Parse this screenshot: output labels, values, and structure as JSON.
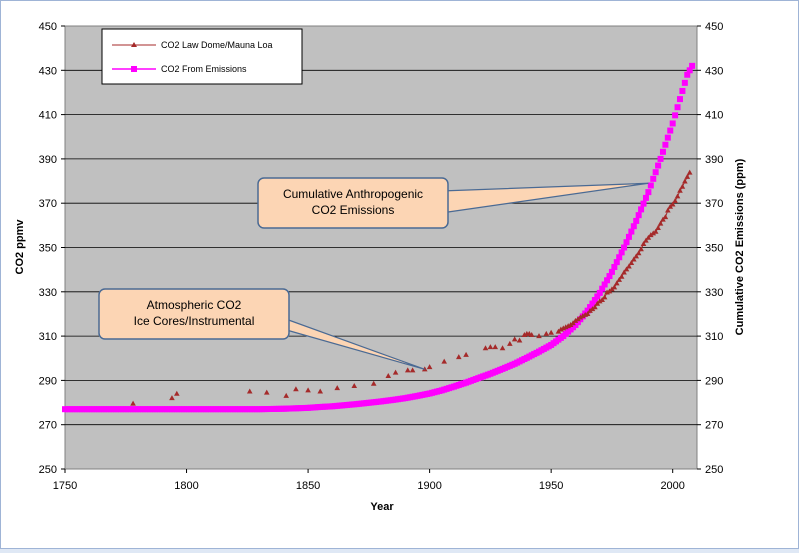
{
  "chart_data": {
    "type": "scatter",
    "xlabel": "Year",
    "ylabel_left": "CO2 ppmv",
    "ylabel_right": "Cumulative CO2 Emissions (ppm)",
    "xlim": [
      1750,
      2010
    ],
    "ylim": [
      250,
      450
    ],
    "x_ticks": [
      1750,
      1800,
      1850,
      1900,
      1950,
      2000
    ],
    "y_ticks": [
      250,
      270,
      290,
      310,
      330,
      350,
      370,
      390,
      410,
      430,
      450
    ],
    "grid": "horizontal",
    "legend_position": "top-left",
    "series": [
      {
        "name": "CO2 Law Dome/Mauna Loa",
        "marker": "triangle",
        "color": "#a52a2a",
        "points": [
          [
            1778,
            279.5
          ],
          [
            1794,
            282
          ],
          [
            1796,
            284
          ],
          [
            1826,
            285
          ],
          [
            1833,
            284.5
          ],
          [
            1841,
            283
          ],
          [
            1845,
            286
          ],
          [
            1850,
            285.5
          ],
          [
            1855,
            285
          ],
          [
            1862,
            286.5
          ],
          [
            1869,
            287.5
          ],
          [
            1877,
            288.5
          ],
          [
            1883,
            292
          ],
          [
            1886,
            293.5
          ],
          [
            1891,
            294.5
          ],
          [
            1893,
            294.5
          ],
          [
            1898,
            295
          ],
          [
            1900,
            296
          ],
          [
            1906,
            298.5
          ],
          [
            1912,
            300.5
          ],
          [
            1915,
            301.5
          ],
          [
            1923,
            304.5
          ],
          [
            1925,
            305
          ],
          [
            1927,
            305
          ],
          [
            1930,
            304.5
          ],
          [
            1933,
            306.5
          ],
          [
            1935,
            308.5
          ],
          [
            1937,
            308
          ],
          [
            1939,
            310.5
          ],
          [
            1940,
            311
          ],
          [
            1941,
            311
          ],
          [
            1942,
            310.5
          ],
          [
            1945,
            310
          ],
          [
            1948,
            311
          ],
          [
            1950,
            311.5
          ],
          [
            1953,
            312
          ],
          [
            1954,
            313
          ],
          [
            1955,
            313.5
          ],
          [
            1956,
            314
          ],
          [
            1957,
            314.5
          ],
          [
            1958,
            315
          ],
          [
            1959,
            315.8
          ],
          [
            1960,
            316.9
          ],
          [
            1961,
            317.6
          ],
          [
            1962,
            318.4
          ],
          [
            1963,
            319
          ],
          [
            1964,
            319.6
          ],
          [
            1965,
            320
          ],
          [
            1966,
            321.4
          ],
          [
            1967,
            322.2
          ],
          [
            1968,
            323
          ],
          [
            1969,
            324.6
          ],
          [
            1970,
            325.7
          ],
          [
            1971,
            326.3
          ],
          [
            1972,
            327.5
          ],
          [
            1973,
            329.7
          ],
          [
            1974,
            330.2
          ],
          [
            1975,
            331.1
          ],
          [
            1976,
            332
          ],
          [
            1977,
            333.8
          ],
          [
            1978,
            335.4
          ],
          [
            1979,
            336.8
          ],
          [
            1980,
            338.7
          ],
          [
            1981,
            340.1
          ],
          [
            1982,
            341.4
          ],
          [
            1983,
            343
          ],
          [
            1984,
            344.6
          ],
          [
            1985,
            346
          ],
          [
            1986,
            347.4
          ],
          [
            1987,
            349.2
          ],
          [
            1988,
            351.6
          ],
          [
            1989,
            353.1
          ],
          [
            1990,
            354.4
          ],
          [
            1991,
            355.6
          ],
          [
            1992,
            356.4
          ],
          [
            1993,
            357.1
          ],
          [
            1994,
            358.8
          ],
          [
            1995,
            360.8
          ],
          [
            1996,
            362.6
          ],
          [
            1997,
            363.7
          ],
          [
            1998,
            366.7
          ],
          [
            1999,
            368.4
          ],
          [
            2000,
            369.4
          ],
          [
            2001,
            371
          ],
          [
            2002,
            373.1
          ],
          [
            2003,
            375.6
          ],
          [
            2004,
            377.4
          ],
          [
            2005,
            379.8
          ],
          [
            2006,
            381.9
          ],
          [
            2007,
            383.8
          ]
        ]
      },
      {
        "name": "CO2 From Emissions",
        "marker": "square",
        "color": "#ff00ff",
        "points": [
          [
            1750,
            277
          ],
          [
            1760,
            277
          ],
          [
            1770,
            277
          ],
          [
            1780,
            277
          ],
          [
            1790,
            277
          ],
          [
            1800,
            277
          ],
          [
            1810,
            277
          ],
          [
            1820,
            277
          ],
          [
            1830,
            277
          ],
          [
            1840,
            277.2
          ],
          [
            1850,
            277.6
          ],
          [
            1855,
            278
          ],
          [
            1860,
            278.3
          ],
          [
            1865,
            278.8
          ],
          [
            1870,
            279.3
          ],
          [
            1875,
            279.9
          ],
          [
            1880,
            280.5
          ],
          [
            1885,
            281.2
          ],
          [
            1890,
            282
          ],
          [
            1895,
            283
          ],
          [
            1900,
            284.1
          ],
          [
            1905,
            285.5
          ],
          [
            1910,
            287.2
          ],
          [
            1915,
            289
          ],
          [
            1920,
            291
          ],
          [
            1925,
            293
          ],
          [
            1930,
            295.2
          ],
          [
            1935,
            297.5
          ],
          [
            1940,
            300.2
          ],
          [
            1945,
            303
          ],
          [
            1950,
            306
          ],
          [
            1955,
            310
          ],
          [
            1960,
            315
          ],
          [
            1965,
            321.5
          ],
          [
            1970,
            329.5
          ],
          [
            1975,
            339
          ],
          [
            1980,
            350
          ],
          [
            1985,
            362
          ],
          [
            1990,
            375
          ],
          [
            1995,
            390
          ],
          [
            2000,
            406
          ],
          [
            2003,
            417
          ],
          [
            2006,
            428
          ],
          [
            2008,
            432
          ]
        ]
      }
    ],
    "callouts": [
      {
        "lines": [
          "Cumulative Anthropogenic",
          "CO2 Emissions"
        ],
        "target": [
          1990,
          379
        ]
      },
      {
        "lines": [
          "Atmospheric CO2",
          "Ice Cores/Instrumental"
        ],
        "target": [
          1898,
          295
        ]
      }
    ]
  }
}
